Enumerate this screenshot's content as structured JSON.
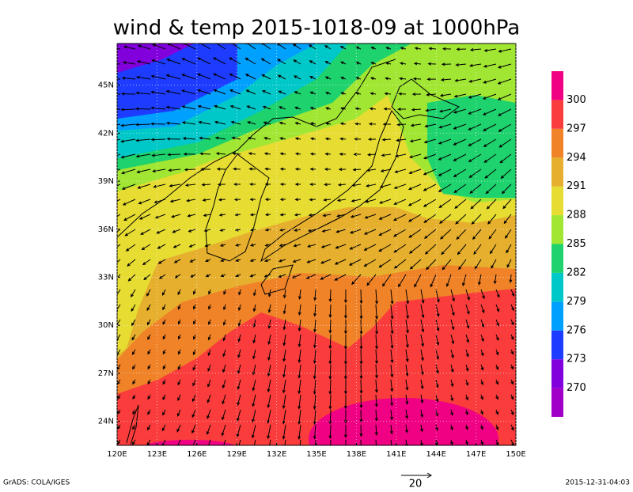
{
  "title": "wind & temp 2015-1018-09 at 1000hPa",
  "map": {
    "lon_range": [
      120,
      150
    ],
    "lat_range": [
      22.5,
      47.6
    ],
    "lon_ticks": [
      {
        "value": 120,
        "label": "120E"
      },
      {
        "value": 123,
        "label": "123E"
      },
      {
        "value": 126,
        "label": "126E"
      },
      {
        "value": 129,
        "label": "129E"
      },
      {
        "value": 132,
        "label": "132E"
      },
      {
        "value": 135,
        "label": "135E"
      },
      {
        "value": 138,
        "label": "138E"
      },
      {
        "value": 141,
        "label": "141E"
      },
      {
        "value": 144,
        "label": "144E"
      },
      {
        "value": 147,
        "label": "147E"
      },
      {
        "value": 150,
        "label": "150E"
      }
    ],
    "lat_ticks": [
      {
        "value": 24,
        "label": "24N"
      },
      {
        "value": 27,
        "label": "27N"
      },
      {
        "value": 30,
        "label": "30N"
      },
      {
        "value": 33,
        "label": "33N"
      },
      {
        "value": 36,
        "label": "36N"
      },
      {
        "value": 39,
        "label": "39N"
      },
      {
        "value": 42,
        "label": "42N"
      },
      {
        "value": 45,
        "label": "45N"
      }
    ]
  },
  "colorbar": {
    "colors": [
      "#a000c8",
      "#8200dc",
      "#1e3cff",
      "#00a0ff",
      "#00c8c8",
      "#1ed26e",
      "#a0e632",
      "#e6dc32",
      "#e6af2d",
      "#f08228",
      "#fa3c3c",
      "#f00082"
    ],
    "ticks": [
      270,
      273,
      276,
      279,
      282,
      285,
      288,
      291,
      294,
      297,
      300
    ]
  },
  "vector_scale": 20,
  "footer": {
    "left": "GrADS: COLA/IGES",
    "right": "2015-12-31-04:03"
  }
}
